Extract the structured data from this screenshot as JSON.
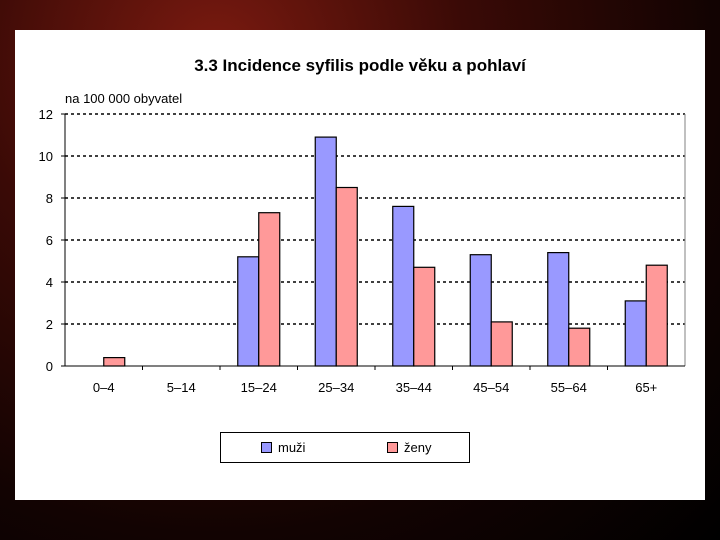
{
  "chart_data": {
    "type": "bar",
    "title": "3.3  Incidence syfilis podle věku a pohlaví",
    "ylabel": "na 100 000 obyvatel",
    "xlabel": "",
    "categories": [
      "0–4",
      "5–14",
      "15–24",
      "25–34",
      "35–44",
      "45–54",
      "55–64",
      "65+"
    ],
    "series": [
      {
        "name": "muži",
        "values": [
          0,
          0,
          5.2,
          10.9,
          7.6,
          5.3,
          5.4,
          3.1
        ],
        "color": "#9999ff"
      },
      {
        "name": "ženy",
        "values": [
          0.4,
          0,
          7.3,
          8.5,
          4.7,
          2.1,
          1.8,
          4.8
        ],
        "color": "#ff9999"
      }
    ],
    "ylim": [
      0,
      12
    ],
    "yticks": [
      "0",
      "2",
      "4",
      "6",
      "8",
      "10",
      "12"
    ],
    "grid": true,
    "legend": "bottom"
  }
}
